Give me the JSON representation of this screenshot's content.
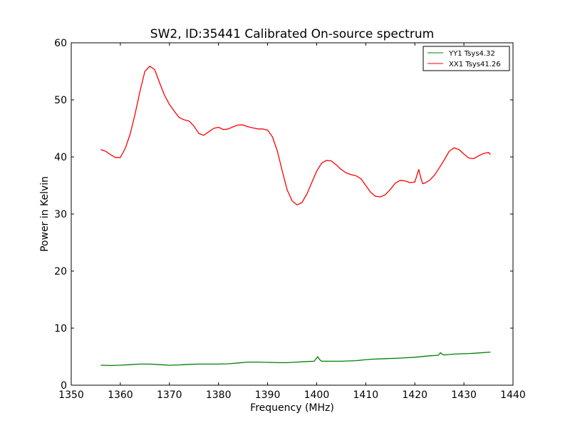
{
  "chart_data": {
    "type": "line",
    "title": "SW2, ID:35441 Calibrated On-source spectrum",
    "xlabel": "Frequency (MHz)",
    "ylabel": "Power in Kelvin",
    "xlim": [
      1350,
      1440
    ],
    "ylim": [
      0,
      60
    ],
    "xticks": [
      1350,
      1360,
      1370,
      1380,
      1390,
      1400,
      1410,
      1420,
      1430,
      1440
    ],
    "yticks": [
      0,
      10,
      20,
      30,
      40,
      50,
      60
    ],
    "grid": false,
    "legend_position": "top-right",
    "series": [
      {
        "name": "YY1 Tsys4.32",
        "color": "#008000",
        "x": [
          1356,
          1358,
          1360,
          1362,
          1364,
          1366,
          1368,
          1370,
          1372,
          1374,
          1376,
          1378,
          1380,
          1382,
          1384,
          1386,
          1388,
          1390,
          1392,
          1394,
          1396,
          1398,
          1399.5,
          1400.2,
          1400.6,
          1401,
          1403,
          1405,
          1408,
          1411,
          1414,
          1417,
          1420,
          1423,
          1424.8,
          1425.2,
          1425.6,
          1426,
          1428,
          1431,
          1433,
          1435.4
        ],
        "values": [
          3.5,
          3.45,
          3.5,
          3.6,
          3.7,
          3.7,
          3.6,
          3.5,
          3.55,
          3.65,
          3.7,
          3.7,
          3.7,
          3.75,
          3.9,
          4.05,
          4.05,
          4.0,
          3.95,
          3.95,
          4.05,
          4.15,
          4.2,
          5.0,
          4.5,
          4.2,
          4.2,
          4.2,
          4.3,
          4.55,
          4.65,
          4.75,
          4.9,
          5.15,
          5.25,
          5.7,
          5.4,
          5.3,
          5.45,
          5.55,
          5.65,
          5.8
        ]
      },
      {
        "name": "XX1 Tsys41.26",
        "color": "#ff0000",
        "x": [
          1356,
          1357,
          1358,
          1359,
          1360,
          1361,
          1362,
          1363,
          1364,
          1365,
          1366,
          1367,
          1368,
          1369,
          1370,
          1371,
          1372,
          1373,
          1374,
          1375,
          1376,
          1377,
          1378,
          1379,
          1380,
          1381,
          1382,
          1383,
          1384,
          1385,
          1386,
          1387,
          1388,
          1389,
          1390,
          1391,
          1392,
          1393,
          1394,
          1395,
          1396,
          1397,
          1398,
          1399,
          1400,
          1401,
          1402,
          1403,
          1404,
          1405,
          1406,
          1407,
          1408,
          1409,
          1410,
          1411,
          1412,
          1413,
          1414,
          1415,
          1416,
          1417,
          1418,
          1419,
          1420,
          1420.8,
          1421.2,
          1421.6,
          1422,
          1423,
          1424,
          1425,
          1426,
          1427,
          1428,
          1429,
          1430,
          1431,
          1432,
          1433,
          1434,
          1435,
          1435.4
        ],
        "values": [
          41.3,
          41.0,
          40.4,
          39.9,
          39.9,
          41.5,
          44.0,
          47.5,
          51.5,
          55.0,
          55.9,
          55.3,
          53.0,
          50.8,
          49.2,
          48.0,
          46.9,
          46.5,
          46.3,
          45.4,
          44.1,
          43.8,
          44.4,
          45.0,
          45.2,
          44.8,
          44.9,
          45.3,
          45.6,
          45.6,
          45.3,
          45.1,
          44.9,
          44.9,
          44.7,
          43.5,
          41.0,
          37.5,
          34.2,
          32.3,
          31.6,
          32.0,
          33.5,
          35.5,
          37.5,
          38.9,
          39.4,
          39.3,
          38.6,
          37.8,
          37.2,
          36.9,
          36.7,
          36.2,
          35.0,
          33.8,
          33.1,
          33.0,
          33.4,
          34.3,
          35.4,
          35.9,
          35.8,
          35.5,
          35.6,
          37.8,
          36.4,
          35.3,
          35.4,
          35.9,
          36.8,
          38.1,
          39.5,
          41.0,
          41.6,
          41.3,
          40.5,
          39.8,
          39.7,
          40.2,
          40.6,
          40.8,
          40.4
        ]
      }
    ]
  }
}
